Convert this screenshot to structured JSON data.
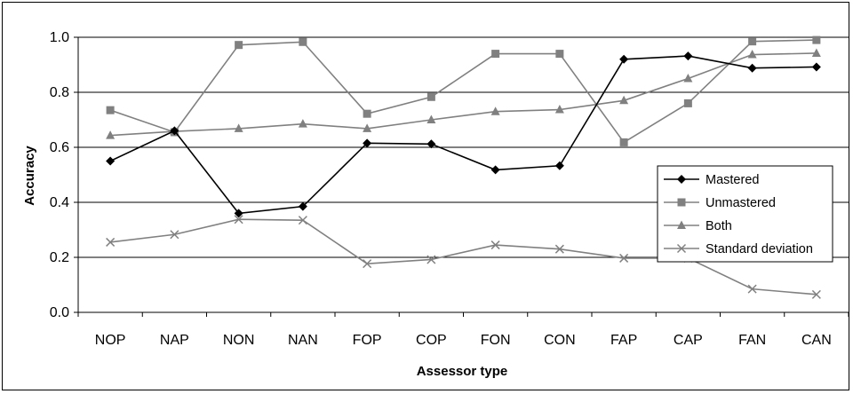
{
  "chart_data": {
    "type": "line",
    "title": "",
    "xlabel": "Assessor type",
    "ylabel": "Accuracy",
    "ylim": [
      0,
      1
    ],
    "yticks": [
      "0.0",
      "0.2",
      "0.4",
      "0.6",
      "0.8",
      "1.0"
    ],
    "grid": "horizontal",
    "legend_position": "right",
    "categories": [
      "NOP",
      "NAP",
      "NON",
      "NAN",
      "FOP",
      "COP",
      "FON",
      "CON",
      "FAP",
      "CAP",
      "FAN",
      "CAN"
    ],
    "series": [
      {
        "name": "Mastered",
        "marker": "diamond",
        "color": "#000000",
        "values": [
          0.55,
          0.66,
          0.36,
          0.385,
          0.615,
          0.612,
          0.518,
          0.533,
          0.92,
          0.932,
          0.888,
          0.892
        ]
      },
      {
        "name": "Unmastered",
        "marker": "square",
        "color": "#808080",
        "values": [
          0.735,
          0.655,
          0.972,
          0.983,
          0.722,
          0.783,
          0.94,
          0.94,
          0.618,
          0.76,
          0.985,
          0.99
        ]
      },
      {
        "name": "Both",
        "marker": "triangle",
        "color": "#808080",
        "values": [
          0.643,
          0.658,
          0.668,
          0.685,
          0.668,
          0.7,
          0.73,
          0.737,
          0.77,
          0.85,
          0.937,
          0.942
        ]
      },
      {
        "name": "Standard deviation",
        "marker": "x",
        "color": "#808080",
        "values": [
          0.255,
          0.283,
          0.338,
          0.335,
          0.177,
          0.192,
          0.245,
          0.23,
          0.197,
          0.197,
          0.085,
          0.065
        ]
      }
    ]
  }
}
